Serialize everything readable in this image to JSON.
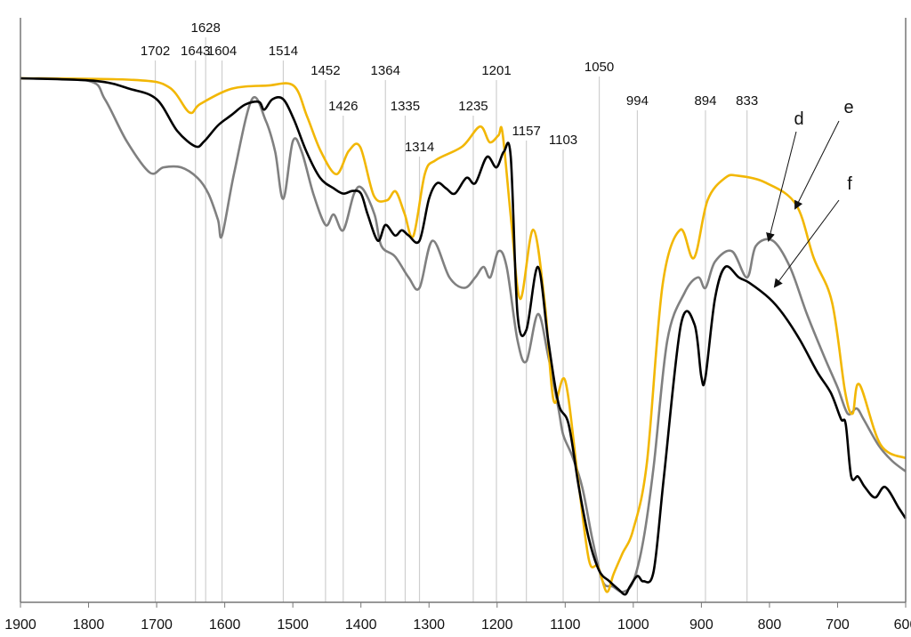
{
  "chart_data": {
    "type": "line",
    "title": "",
    "xlabel": "",
    "ylabel": "",
    "xlim": [
      1900,
      600
    ],
    "ylim": [
      0,
      100
    ],
    "x_reversed": true,
    "grid": false,
    "x_ticks": [
      1900,
      1800,
      1700,
      1600,
      1500,
      1400,
      1300,
      1200,
      1100,
      1000,
      900,
      800,
      700,
      600
    ],
    "peak_markers": [
      {
        "label": "1702",
        "x": 1702,
        "row": 1
      },
      {
        "label": "1643",
        "x": 1643,
        "row": 1
      },
      {
        "label": "1628",
        "x": 1628,
        "row": 0
      },
      {
        "label": "1604",
        "x": 1604,
        "row": 1
      },
      {
        "label": "1514",
        "x": 1514,
        "row": 1
      },
      {
        "label": "1452",
        "x": 1452,
        "row": 2
      },
      {
        "label": "1426",
        "x": 1426,
        "row": 3
      },
      {
        "label": "1364",
        "x": 1364,
        "row": 2
      },
      {
        "label": "1335",
        "x": 1335,
        "row": 3
      },
      {
        "label": "1314",
        "x": 1314,
        "row": 4
      },
      {
        "label": "1235",
        "x": 1235,
        "row": 3
      },
      {
        "label": "1201",
        "x": 1201,
        "row": 2
      },
      {
        "label": "1157",
        "x": 1157,
        "row": 5
      },
      {
        "label": "1103",
        "x": 1103,
        "row": 6
      },
      {
        "label": "1050",
        "x": 1050,
        "row": 7
      },
      {
        "label": "994",
        "x": 994,
        "row": 8
      },
      {
        "label": "894",
        "x": 894,
        "row": 8
      },
      {
        "label": "833",
        "x": 833,
        "row": 8
      }
    ],
    "annotations": [
      {
        "text": "d",
        "series": "d"
      },
      {
        "text": "e",
        "series": "e"
      },
      {
        "text": "f",
        "series": "f"
      }
    ],
    "series": [
      {
        "name": "e",
        "color": "#F2B705",
        "x": [
          1900,
          1734,
          1682,
          1652,
          1636,
          1590,
          1538,
          1499,
          1479,
          1459,
          1436,
          1418,
          1401,
          1381,
          1362,
          1349,
          1336,
          1323,
          1306,
          1290,
          1251,
          1225,
          1211,
          1198,
          1192,
          1179,
          1166,
          1147,
          1130,
          1117,
          1100,
          1081,
          1065,
          1052,
          1039,
          1029,
          1016,
          1000,
          980,
          957,
          931,
          911,
          891,
          865,
          846,
          806,
          761,
          735,
          708,
          689,
          678,
          668,
          637,
          600
        ],
        "y": [
          100,
          99.7,
          98.3,
          93.5,
          95.1,
          98,
          98.6,
          98.6,
          92.7,
          86.1,
          81.7,
          86.1,
          86.9,
          77.6,
          76.7,
          78.4,
          74.2,
          69.9,
          81.8,
          84.4,
          87,
          90.8,
          87.8,
          89.1,
          89.5,
          72.5,
          57.9,
          71.1,
          57.2,
          38.5,
          42.3,
          23.3,
          8.0,
          6.8,
          2.0,
          5.4,
          9.3,
          13.9,
          26.7,
          60.6,
          71.1,
          65.7,
          76.7,
          81.0,
          81.4,
          80.1,
          75.9,
          65.7,
          57.2,
          40.2,
          36.0,
          41.6,
          30.1,
          27.5
        ]
      },
      {
        "name": "d",
        "color": "#808080",
        "x": [
          1900,
          1800,
          1776,
          1744,
          1710,
          1690,
          1664,
          1640,
          1624,
          1610,
          1604,
          1586,
          1560,
          1540,
          1526,
          1514,
          1500,
          1487,
          1470,
          1452,
          1440,
          1426,
          1410,
          1398,
          1380,
          1370,
          1350,
          1330,
          1314,
          1295,
          1270,
          1248,
          1232,
          1220,
          1210,
          1198,
          1186,
          1170,
          1157,
          1140,
          1125,
          1110,
          1103,
          1090,
          1075,
          1060,
          1045,
          1030,
          1015,
          1000,
          985,
          970,
          950,
          925,
          905,
          894,
          880,
          855,
          833,
          820,
          795,
          770,
          745,
          720,
          700,
          685,
          672,
          662,
          640,
          620,
          600
        ],
        "y": [
          100,
          99.5,
          96,
          88,
          82,
          83,
          83,
          81,
          78,
          73,
          70,
          82,
          96,
          92,
          86,
          77,
          88,
          86,
          78,
          72,
          74,
          71,
          78,
          79,
          74,
          68,
          66,
          62,
          60,
          69,
          62,
          60,
          62,
          64,
          62,
          67,
          64,
          50,
          46,
          55,
          47,
          37,
          32,
          28,
          22,
          12,
          4,
          3,
          2,
          4,
          12,
          26,
          50,
          59,
          62,
          60,
          65,
          67,
          62,
          68,
          69,
          64,
          55,
          47,
          41,
          36,
          37,
          35,
          30,
          27,
          25
        ]
      },
      {
        "name": "f",
        "color": "#000000",
        "x": [
          1900,
          1790,
          1740,
          1700,
          1670,
          1643,
          1630,
          1610,
          1590,
          1570,
          1550,
          1542,
          1530,
          1514,
          1498,
          1480,
          1460,
          1440,
          1426,
          1412,
          1400,
          1390,
          1375,
          1364,
          1350,
          1340,
          1330,
          1314,
          1300,
          1288,
          1275,
          1262,
          1245,
          1232,
          1215,
          1201,
          1190,
          1180,
          1170,
          1157,
          1140,
          1125,
          1110,
          1095,
          1080,
          1065,
          1050,
          1035,
          1022,
          1012,
          1005,
          994,
          985,
          970,
          955,
          930,
          910,
          900,
          894,
          880,
          865,
          845,
          830,
          800,
          780,
          755,
          730,
          710,
          695,
          688,
          680,
          670,
          660,
          645,
          630,
          610,
          600
        ],
        "y": [
          100,
          99.5,
          98,
          96,
          90,
          87,
          88,
          91,
          93,
          95,
          95.5,
          94,
          96,
          96,
          92,
          86,
          81,
          79,
          78,
          78.5,
          78,
          74,
          69,
          72,
          70,
          71,
          70,
          69,
          77,
          80,
          79,
          78,
          81,
          80,
          85,
          83,
          86,
          85,
          55,
          52,
          64,
          50,
          38,
          34,
          22,
          12,
          6,
          4,
          2.5,
          1.5,
          3,
          5,
          4,
          6,
          24,
          53,
          53,
          43,
          43,
          58,
          64,
          62,
          61,
          58,
          55,
          50,
          44,
          40,
          35,
          34,
          24,
          24,
          22,
          20,
          22,
          18,
          16
        ]
      }
    ]
  }
}
